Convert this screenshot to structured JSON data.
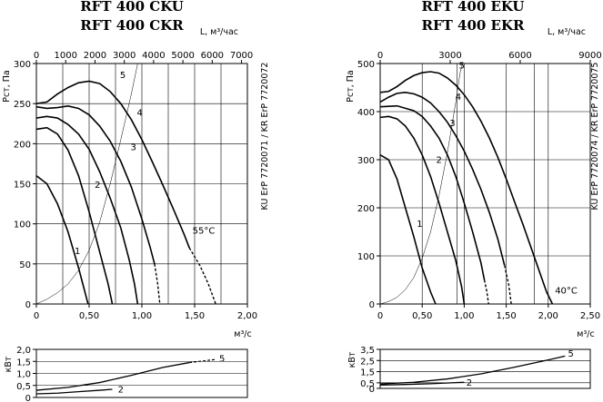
{
  "chart_data": [
    {
      "id": "ck",
      "type": "line",
      "title": "RFT 400 CKU",
      "subtitle": "RFT 400 CKR",
      "xlabel": "м³/с",
      "ylabel": "Рст, Па",
      "x2label": "L, м³/час",
      "side_label": "KU ErP 7720071 / KR ErP 7720072",
      "temp_label": "55°C",
      "xlim": [
        0,
        2.0
      ],
      "ylim": [
        0,
        300
      ],
      "x2lim": [
        0,
        7200
      ],
      "grid": true,
      "xticks": [
        "0",
        "0,50",
        "1,00",
        "1,50",
        "2,00"
      ],
      "xtick_values": [
        0,
        0.5,
        1.0,
        1.5,
        2.0
      ],
      "yticks": [
        "0",
        "50",
        "100",
        "150",
        "200",
        "250",
        "300"
      ],
      "ytick_values": [
        0,
        50,
        100,
        150,
        200,
        250,
        300
      ],
      "x2ticks": [
        "0",
        "1000",
        "2000",
        "3000",
        "4000",
        "5000",
        "6000",
        "7000"
      ],
      "x2tick_values": [
        0,
        1000,
        2000,
        3000,
        4000,
        5000,
        6000,
        7000
      ],
      "x_grid": [
        0.25,
        0.5,
        0.75,
        1.0,
        1.25,
        1.5,
        1.75
      ],
      "series": [
        {
          "name": "1",
          "solid": [
            [
              0,
              160
            ],
            [
              0.1,
              150
            ],
            [
              0.2,
              125
            ],
            [
              0.3,
              90
            ],
            [
              0.4,
              45
            ],
            [
              0.46,
              15
            ],
            [
              0.49,
              0
            ]
          ],
          "dashed": []
        },
        {
          "name": "2",
          "solid": [
            [
              0,
              218
            ],
            [
              0.1,
              220
            ],
            [
              0.2,
              212
            ],
            [
              0.3,
              192
            ],
            [
              0.4,
              160
            ],
            [
              0.5,
              115
            ],
            [
              0.6,
              65
            ],
            [
              0.68,
              25
            ],
            [
              0.72,
              0
            ]
          ],
          "dashed": []
        },
        {
          "name": "3",
          "solid": [
            [
              0,
              232
            ],
            [
              0.1,
              234
            ],
            [
              0.2,
              232
            ],
            [
              0.3,
              224
            ],
            [
              0.4,
              212
            ],
            [
              0.5,
              193
            ],
            [
              0.6,
              165
            ],
            [
              0.7,
              132
            ],
            [
              0.8,
              95
            ],
            [
              0.88,
              55
            ],
            [
              0.93,
              25
            ],
            [
              0.96,
              0
            ]
          ],
          "dashed": []
        },
        {
          "name": "4",
          "solid": [
            [
              0,
              246
            ],
            [
              0.1,
              244
            ],
            [
              0.2,
              245
            ],
            [
              0.3,
              247
            ],
            [
              0.4,
              244
            ],
            [
              0.5,
              236
            ],
            [
              0.6,
              222
            ],
            [
              0.7,
              203
            ],
            [
              0.8,
              178
            ],
            [
              0.9,
              146
            ],
            [
              1.0,
              106
            ],
            [
              1.08,
              70
            ],
            [
              1.12,
              50
            ]
          ],
          "dashed": [
            [
              1.12,
              50
            ],
            [
              1.15,
              25
            ],
            [
              1.17,
              0
            ]
          ]
        },
        {
          "name": "5",
          "solid": [
            [
              0,
              250
            ],
            [
              0.1,
              252
            ],
            [
              0.2,
              262
            ],
            [
              0.3,
              270
            ],
            [
              0.4,
              276
            ],
            [
              0.5,
              278
            ],
            [
              0.6,
              275
            ],
            [
              0.7,
              265
            ],
            [
              0.8,
              250
            ],
            [
              0.9,
              230
            ],
            [
              1.0,
              205
            ],
            [
              1.1,
              177
            ],
            [
              1.2,
              148
            ],
            [
              1.3,
              118
            ],
            [
              1.4,
              87
            ],
            [
              1.45,
              70
            ]
          ],
          "dashed": [
            [
              1.45,
              70
            ],
            [
              1.55,
              48
            ],
            [
              1.63,
              25
            ],
            [
              1.7,
              0
            ]
          ]
        }
      ],
      "system_curve": [
        [
          0,
          0
        ],
        [
          0.1,
          6
        ],
        [
          0.2,
          14
        ],
        [
          0.3,
          25
        ],
        [
          0.4,
          42
        ],
        [
          0.5,
          67
        ],
        [
          0.6,
          102
        ],
        [
          0.7,
          150
        ],
        [
          0.8,
          205
        ],
        [
          0.9,
          262
        ],
        [
          0.96,
          300
        ]
      ],
      "labels": [
        {
          "text": "1",
          "x": 0.39,
          "y": 62
        },
        {
          "text": "2",
          "x": 0.58,
          "y": 145
        },
        {
          "text": "3",
          "x": 0.92,
          "y": 192
        },
        {
          "text": "4",
          "x": 0.98,
          "y": 235
        },
        {
          "text": "5",
          "x": 0.82,
          "y": 282
        }
      ],
      "power": {
        "ylabel": "кВт",
        "ylim": [
          0,
          2.0
        ],
        "yticks": [
          "0",
          "0,5",
          "1,0",
          "1,5",
          "2,0"
        ],
        "ytick_values": [
          0,
          0.5,
          1.0,
          1.5,
          2.0
        ],
        "series": [
          {
            "name": "2",
            "solid": [
              [
                0,
                0.15
              ],
              [
                0.2,
                0.18
              ],
              [
                0.4,
                0.24
              ],
              [
                0.6,
                0.3
              ],
              [
                0.72,
                0.34
              ]
            ],
            "dashed": [],
            "label_at": [
              0.8,
              0.32
            ]
          },
          {
            "name": "5",
            "solid": [
              [
                0,
                0.3
              ],
              [
                0.3,
                0.42
              ],
              [
                0.6,
                0.62
              ],
              [
                0.9,
                0.92
              ],
              [
                1.2,
                1.25
              ],
              [
                1.45,
                1.45
              ]
            ],
            "dashed": [
              [
                1.45,
                1.45
              ],
              [
                1.7,
                1.58
              ]
            ],
            "label_at": [
              1.76,
              1.6
            ]
          }
        ]
      }
    },
    {
      "id": "ek",
      "type": "line",
      "title": "RFT 400 EKU",
      "subtitle": "RFT 400 EKR",
      "xlabel": "м³/с",
      "ylabel": "Рст, Па",
      "x2label": "L, м³/час",
      "side_label": "KU ErP 7720074 / KR ErP 7720075",
      "temp_label": "40°C",
      "xlim": [
        0,
        2.5
      ],
      "ylim": [
        0,
        500
      ],
      "x2lim": [
        0,
        9000
      ],
      "grid": true,
      "xticks": [
        "0",
        "0,50",
        "1,00",
        "1,50",
        "2,00",
        "2,50"
      ],
      "xtick_values": [
        0,
        0.5,
        1.0,
        1.5,
        2.0,
        2.5
      ],
      "yticks": [
        "0",
        "100",
        "200",
        "300",
        "400",
        "500"
      ],
      "ytick_values": [
        0,
        100,
        200,
        300,
        400,
        500
      ],
      "x2ticks": [
        "0",
        "3000",
        "6000",
        "9000"
      ],
      "x2tick_values": [
        0,
        3000,
        6000,
        9000
      ],
      "x_grid": [
        0.5,
        0.9167,
        1.0,
        1.5,
        1.8333,
        2.0
      ],
      "series": [
        {
          "name": "1",
          "solid": [
            [
              0,
              310
            ],
            [
              0.1,
              300
            ],
            [
              0.2,
              260
            ],
            [
              0.3,
              200
            ],
            [
              0.4,
              140
            ],
            [
              0.5,
              75
            ],
            [
              0.6,
              25
            ],
            [
              0.66,
              0
            ]
          ],
          "dashed": []
        },
        {
          "name": "2",
          "solid": [
            [
              0,
              388
            ],
            [
              0.1,
              390
            ],
            [
              0.2,
              385
            ],
            [
              0.3,
              370
            ],
            [
              0.4,
              345
            ],
            [
              0.5,
              310
            ],
            [
              0.6,
              265
            ],
            [
              0.7,
              210
            ],
            [
              0.8,
              150
            ],
            [
              0.9,
              90
            ],
            [
              0.97,
              35
            ],
            [
              1.0,
              0
            ]
          ],
          "dashed": []
        },
        {
          "name": "3",
          "solid": [
            [
              0,
              410
            ],
            [
              0.2,
              412
            ],
            [
              0.4,
              402
            ],
            [
              0.5,
              390
            ],
            [
              0.6,
              370
            ],
            [
              0.7,
              345
            ],
            [
              0.8,
              310
            ],
            [
              0.9,
              265
            ],
            [
              1.0,
              210
            ],
            [
              1.1,
              150
            ],
            [
              1.2,
              85
            ],
            [
              1.24,
              50
            ]
          ],
          "dashed": [
            [
              1.24,
              50
            ],
            [
              1.27,
              25
            ],
            [
              1.29,
              0
            ]
          ]
        },
        {
          "name": "4",
          "solid": [
            [
              0,
              420
            ],
            [
              0.1,
              430
            ],
            [
              0.2,
              438
            ],
            [
              0.3,
              440
            ],
            [
              0.4,
              437
            ],
            [
              0.5,
              430
            ],
            [
              0.6,
              418
            ],
            [
              0.7,
              400
            ],
            [
              0.8,
              378
            ],
            [
              0.9,
              350
            ],
            [
              1.0,
              318
            ],
            [
              1.1,
              280
            ],
            [
              1.2,
              238
            ],
            [
              1.3,
              190
            ],
            [
              1.4,
              135
            ],
            [
              1.48,
              80
            ]
          ],
          "dashed": [
            [
              1.48,
              80
            ],
            [
              1.53,
              40
            ],
            [
              1.56,
              0
            ]
          ]
        },
        {
          "name": "5",
          "solid": [
            [
              0,
              440
            ],
            [
              0.1,
              442
            ],
            [
              0.2,
              452
            ],
            [
              0.3,
              465
            ],
            [
              0.4,
              475
            ],
            [
              0.5,
              481
            ],
            [
              0.6,
              483
            ],
            [
              0.7,
              480
            ],
            [
              0.8,
              470
            ],
            [
              0.9,
              455
            ],
            [
              1.0,
              435
            ],
            [
              1.1,
              410
            ],
            [
              1.2,
              380
            ],
            [
              1.3,
              345
            ],
            [
              1.4,
              305
            ],
            [
              1.5,
              260
            ],
            [
              1.6,
              212
            ],
            [
              1.7,
              165
            ],
            [
              1.8,
              115
            ],
            [
              1.9,
              65
            ],
            [
              1.98,
              25
            ],
            [
              2.05,
              0
            ]
          ],
          "dashed": []
        }
      ],
      "system_curve": [
        [
          0,
          0
        ],
        [
          0.1,
          5
        ],
        [
          0.2,
          14
        ],
        [
          0.3,
          30
        ],
        [
          0.4,
          55
        ],
        [
          0.5,
          95
        ],
        [
          0.6,
          150
        ],
        [
          0.7,
          225
        ],
        [
          0.8,
          315
        ],
        [
          0.9,
          420
        ],
        [
          0.95,
          480
        ],
        [
          0.98,
          500
        ]
      ],
      "labels": [
        {
          "text": "1",
          "x": 0.47,
          "y": 160
        },
        {
          "text": "2",
          "x": 0.7,
          "y": 293
        },
        {
          "text": "3",
          "x": 0.86,
          "y": 370
        },
        {
          "text": "4",
          "x": 0.93,
          "y": 425
        },
        {
          "text": "5",
          "x": 0.97,
          "y": 490
        }
      ],
      "power": {
        "ylabel": "кВт",
        "ylim": [
          0,
          3.5
        ],
        "yticks": [
          "0",
          "0,5",
          "1,5",
          "2,5",
          "3,5"
        ],
        "ytick_values": [
          0,
          0.5,
          1.5,
          2.5,
          3.5
        ],
        "series": [
          {
            "name": "2",
            "solid": [
              [
                0,
                0.3
              ],
              [
                0.3,
                0.35
              ],
              [
                0.6,
                0.42
              ],
              [
                0.9,
                0.52
              ],
              [
                1.0,
                0.55
              ]
            ],
            "dashed": [],
            "label_at": [
              1.06,
              0.5
            ]
          },
          {
            "name": "5",
            "solid": [
              [
                0,
                0.4
              ],
              [
                0.4,
                0.55
              ],
              [
                0.8,
                0.85
              ],
              [
                1.2,
                1.3
              ],
              [
                1.6,
                1.9
              ],
              [
                2.0,
                2.55
              ],
              [
                2.2,
                2.9
              ]
            ],
            "dashed": [],
            "label_at": [
              2.27,
              3.1
            ]
          }
        ]
      }
    }
  ]
}
